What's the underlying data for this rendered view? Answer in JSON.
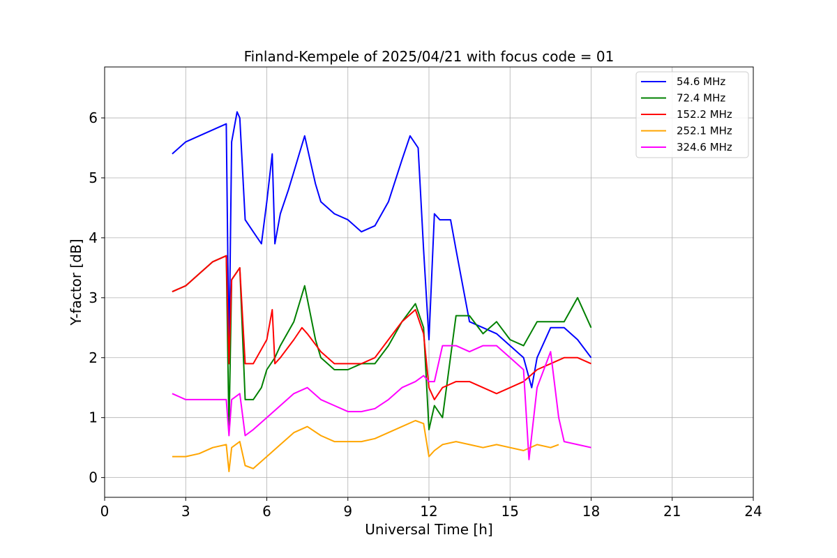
{
  "chart_data": {
    "type": "line",
    "title": "Finland-Kempele of 2025/04/21 with focus code = 01",
    "xlabel": "Universal Time [h]",
    "ylabel": "Y-factor [dB]",
    "xlim": [
      0,
      24
    ],
    "ylim": [
      -0.33,
      6.85
    ],
    "xticks": [
      0,
      3,
      6,
      9,
      12,
      15,
      18,
      21,
      24
    ],
    "yticks": [
      0,
      1,
      2,
      3,
      4,
      5,
      6
    ],
    "grid": true,
    "legend_position": "top-right",
    "series": [
      {
        "name": " 54.6 MHz",
        "color": "#0000ff",
        "x": [
          2.5,
          3.0,
          3.5,
          4.0,
          4.5,
          4.6,
          4.7,
          4.9,
          5.0,
          5.2,
          5.5,
          5.8,
          6.0,
          6.2,
          6.3,
          6.5,
          6.8,
          7.0,
          7.2,
          7.4,
          7.6,
          7.8,
          8.0,
          8.5,
          9.0,
          9.5,
          10.0,
          10.5,
          11.0,
          11.3,
          11.6,
          11.8,
          12.0,
          12.2,
          12.4,
          12.8,
          13.0,
          13.5,
          14.0,
          14.5,
          15.0,
          15.5,
          15.8,
          16.0,
          16.5,
          17.0,
          17.5,
          18.0
        ],
        "values": [
          5.4,
          5.6,
          5.7,
          5.8,
          5.9,
          2.0,
          5.6,
          6.1,
          6.0,
          4.3,
          4.1,
          3.9,
          4.6,
          5.4,
          3.9,
          4.4,
          4.8,
          5.1,
          5.4,
          5.7,
          5.3,
          4.9,
          4.6,
          4.4,
          4.3,
          4.1,
          4.2,
          4.6,
          5.3,
          5.7,
          5.5,
          3.8,
          2.3,
          4.4,
          4.3,
          4.3,
          3.8,
          2.6,
          2.5,
          2.4,
          2.2,
          2.0,
          1.5,
          2.0,
          2.5,
          2.5,
          2.3,
          2.0
        ]
      },
      {
        "name": " 72.4 MHz",
        "color": "#008000",
        "x": [
          2.5,
          3.0,
          3.5,
          4.0,
          4.5,
          4.6,
          4.7,
          5.0,
          5.2,
          5.5,
          5.8,
          6.0,
          6.3,
          6.5,
          7.0,
          7.4,
          7.8,
          8.0,
          8.5,
          9.0,
          9.5,
          10.0,
          10.5,
          11.0,
          11.5,
          11.8,
          12.0,
          12.2,
          12.5,
          13.0,
          13.5,
          14.0,
          14.5,
          15.0,
          15.5,
          16.0,
          16.5,
          17.0,
          17.5,
          18.0
        ],
        "values": [
          3.1,
          3.2,
          3.4,
          3.6,
          3.7,
          0.8,
          3.3,
          3.5,
          1.3,
          1.3,
          1.5,
          1.8,
          2.0,
          2.2,
          2.6,
          3.2,
          2.3,
          2.0,
          1.8,
          1.8,
          1.9,
          1.9,
          2.2,
          2.6,
          2.9,
          2.5,
          0.8,
          1.2,
          1.0,
          2.7,
          2.7,
          2.4,
          2.6,
          2.3,
          2.2,
          2.6,
          2.6,
          2.6,
          3.0,
          2.5
        ]
      },
      {
        "name": " 152.2 MHz",
        "color": "#ff0000",
        "x": [
          2.5,
          3.0,
          3.5,
          4.0,
          4.5,
          4.6,
          4.7,
          5.0,
          5.2,
          5.5,
          6.0,
          6.2,
          6.3,
          6.5,
          7.0,
          7.3,
          7.5,
          8.0,
          8.5,
          9.0,
          9.5,
          10.0,
          10.5,
          11.0,
          11.5,
          11.8,
          12.0,
          12.2,
          12.5,
          13.0,
          13.5,
          14.0,
          14.5,
          15.0,
          15.5,
          16.0,
          16.5,
          17.0,
          17.5,
          18.0
        ],
        "values": [
          3.1,
          3.2,
          3.4,
          3.6,
          3.7,
          1.9,
          3.3,
          3.5,
          1.9,
          1.9,
          2.3,
          2.8,
          1.9,
          2.0,
          2.3,
          2.5,
          2.4,
          2.1,
          1.9,
          1.9,
          1.9,
          2.0,
          2.3,
          2.6,
          2.8,
          2.4,
          1.5,
          1.3,
          1.5,
          1.6,
          1.6,
          1.5,
          1.4,
          1.5,
          1.6,
          1.8,
          1.9,
          2.0,
          2.0,
          1.9
        ]
      },
      {
        "name": " 252.1 MHz",
        "color": "#ffa500",
        "x": [
          2.5,
          3.0,
          3.5,
          4.0,
          4.5,
          4.6,
          4.7,
          5.0,
          5.2,
          5.5,
          6.0,
          6.5,
          7.0,
          7.5,
          8.0,
          8.5,
          9.0,
          9.5,
          10.0,
          10.5,
          11.0,
          11.5,
          11.8,
          12.0,
          12.2,
          12.5,
          13.0,
          13.5,
          14.0,
          14.5,
          15.0,
          15.5,
          16.0,
          16.5,
          16.8
        ],
        "values": [
          0.35,
          0.35,
          0.4,
          0.5,
          0.55,
          0.1,
          0.5,
          0.6,
          0.2,
          0.15,
          0.35,
          0.55,
          0.75,
          0.85,
          0.7,
          0.6,
          0.6,
          0.6,
          0.65,
          0.75,
          0.85,
          0.95,
          0.9,
          0.35,
          0.45,
          0.55,
          0.6,
          0.55,
          0.5,
          0.55,
          0.5,
          0.45,
          0.55,
          0.5,
          0.55
        ]
      },
      {
        "name": " 324.6 MHz",
        "color": "#ff00ff",
        "x": [
          2.5,
          3.0,
          3.5,
          4.0,
          4.5,
          4.6,
          4.7,
          5.0,
          5.2,
          5.5,
          6.0,
          6.5,
          7.0,
          7.5,
          8.0,
          8.5,
          9.0,
          9.5,
          10.0,
          10.5,
          11.0,
          11.5,
          11.8,
          12.0,
          12.2,
          12.5,
          13.0,
          13.5,
          14.0,
          14.5,
          15.0,
          15.5,
          15.7,
          16.0,
          16.5,
          16.8,
          17.0,
          17.5,
          18.0
        ],
        "values": [
          1.4,
          1.3,
          1.3,
          1.3,
          1.3,
          0.7,
          1.3,
          1.4,
          0.7,
          0.8,
          1.0,
          1.2,
          1.4,
          1.5,
          1.3,
          1.2,
          1.1,
          1.1,
          1.15,
          1.3,
          1.5,
          1.6,
          1.7,
          1.6,
          1.6,
          2.2,
          2.2,
          2.1,
          2.2,
          2.2,
          2.0,
          1.8,
          0.3,
          1.5,
          2.1,
          1.0,
          0.6,
          0.55,
          0.5
        ]
      }
    ]
  }
}
